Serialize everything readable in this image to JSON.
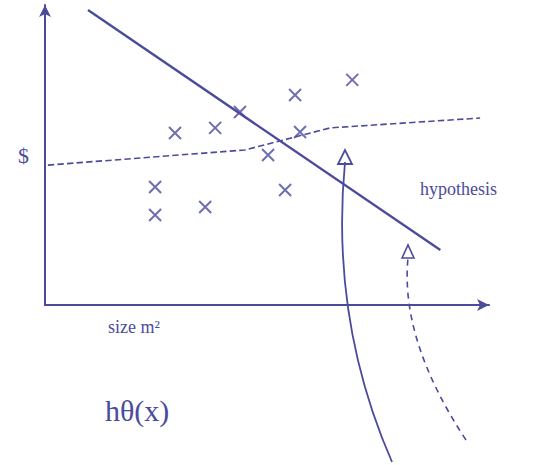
{
  "chart_data": {
    "type": "scatter",
    "x_label": "size m²",
    "y_label": "$",
    "annotations": [
      "hypothesis",
      "hθ(x)"
    ],
    "xlim": [
      0,
      125
    ],
    "ylim": [
      0,
      125
    ],
    "tick_labels": false,
    "grid": false,
    "color": "#4b4b9c",
    "series": [
      {
        "type": "scatter",
        "marker": "x",
        "color": "#4b4b9c",
        "x": [
          54.9,
          70.4,
          86.5,
          36.6,
          47.9,
          71.8,
          62.8,
          31.0,
          31.0,
          45.1,
          67.6
        ],
        "values": [
          80.4,
          87.5,
          93.8,
          71.7,
          73.8,
          72.1,
          62.5,
          49.2,
          37.5,
          40.8,
          47.9
        ]
      },
      {
        "type": "line",
        "line_style": "solid",
        "color": "#4b4b9c",
        "x": [
          12.1,
          111.3
        ],
        "values": [
          122.9,
          22.9
        ]
      },
      {
        "type": "line",
        "line_style": "dashed",
        "color": "#4b4b9c",
        "x": [
          0.8,
          56.3,
          80.3,
          122.5
        ],
        "values": [
          58.3,
          64.6,
          73.8,
          77.9
        ]
      }
    ]
  }
}
